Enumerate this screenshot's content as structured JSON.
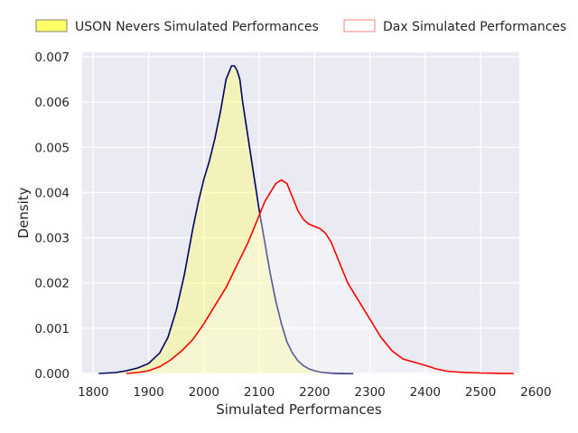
{
  "chart_data": {
    "type": "area",
    "title": "",
    "xlabel": "Simulated Performances",
    "ylabel": "Density",
    "xlim": [
      1780,
      2570
    ],
    "ylim": [
      0,
      0.0071
    ],
    "xticks": [
      1800,
      1900,
      2000,
      2100,
      2200,
      2300,
      2400,
      2500,
      2600
    ],
    "yticks": [
      0.0,
      0.001,
      0.002,
      0.003,
      0.004,
      0.005,
      0.006,
      0.007
    ],
    "ytick_labels": [
      "0.000",
      "0.001",
      "0.002",
      "0.003",
      "0.004",
      "0.005",
      "0.006",
      "0.007"
    ],
    "grid": true,
    "legend_position": "top",
    "background_color": "#eaeaf2",
    "series": [
      {
        "name": "USON Nevers Simulated Performances",
        "edge_color": "#000066",
        "fill_color": "#ffff66",
        "legend_edge": "#808080",
        "x": [
          1810,
          1840,
          1860,
          1880,
          1900,
          1920,
          1935,
          1950,
          1965,
          1980,
          1990,
          2000,
          2010,
          2020,
          2030,
          2040,
          2050,
          2055,
          2060,
          2065,
          2070,
          2080,
          2090,
          2100,
          2110,
          2120,
          2130,
          2140,
          2150,
          2160,
          2170,
          2180,
          2190,
          2200,
          2210,
          2220,
          2230,
          2240,
          2250,
          2260,
          2270
        ],
        "y": [
          0.0,
          2e-05,
          6e-05,
          0.00012,
          0.00022,
          0.00045,
          0.0008,
          0.0014,
          0.0022,
          0.0032,
          0.0038,
          0.0043,
          0.0047,
          0.0052,
          0.0058,
          0.0065,
          0.0068,
          0.0068,
          0.0067,
          0.0065,
          0.006,
          0.0052,
          0.0044,
          0.0036,
          0.0029,
          0.0022,
          0.0016,
          0.0011,
          0.0007,
          0.00045,
          0.00028,
          0.00017,
          0.0001,
          6e-05,
          3e-05,
          1.5e-05,
          8e-06,
          4e-06,
          2e-06,
          5e-07,
          0.0
        ]
      },
      {
        "name": "Dax Simulated Performances",
        "edge_color": "#ff0000",
        "fill_color": "#ffffff",
        "legend_edge": "#ff8080",
        "x": [
          1860,
          1880,
          1900,
          1920,
          1940,
          1960,
          1980,
          2000,
          2020,
          2040,
          2060,
          2080,
          2100,
          2110,
          2120,
          2130,
          2140,
          2150,
          2160,
          2170,
          2180,
          2190,
          2200,
          2210,
          2220,
          2230,
          2240,
          2250,
          2260,
          2280,
          2300,
          2320,
          2340,
          2360,
          2380,
          2400,
          2420,
          2440,
          2460,
          2480,
          2500,
          2520,
          2540,
          2560
        ],
        "y": [
          0.0,
          2e-05,
          6e-05,
          0.00015,
          0.0003,
          0.0005,
          0.00075,
          0.0011,
          0.0015,
          0.0019,
          0.0024,
          0.0029,
          0.0035,
          0.0038,
          0.004,
          0.0042,
          0.00428,
          0.0042,
          0.0039,
          0.0036,
          0.0034,
          0.0033,
          0.00325,
          0.0032,
          0.0031,
          0.0029,
          0.0026,
          0.0023,
          0.002,
          0.0016,
          0.0012,
          0.0008,
          0.0005,
          0.00032,
          0.00025,
          0.00018,
          0.0001,
          5e-05,
          3e-05,
          2e-05,
          1e-05,
          5e-06,
          2e-06,
          0.0
        ]
      }
    ]
  }
}
